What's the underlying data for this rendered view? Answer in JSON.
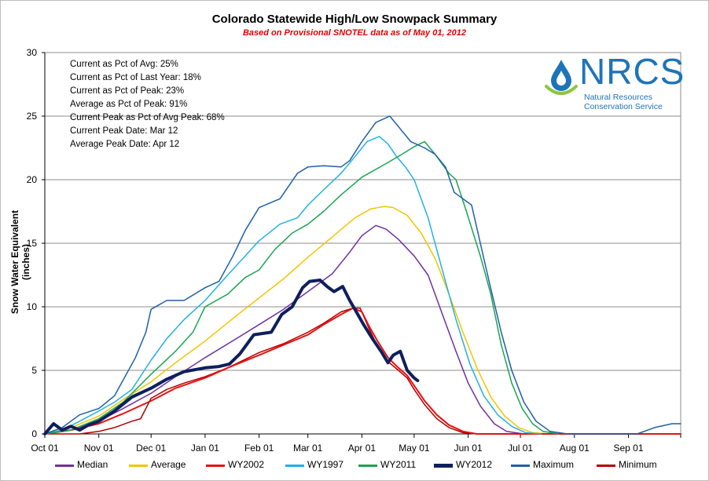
{
  "chart_data": {
    "type": "line",
    "title": "Colorado Statewide High/Low Snowpack Summary",
    "subtitle": "Based on Provisional SNOTEL data as of May 01, 2012",
    "ylabel": "Snow Water Equivalent (inches)",
    "xlabel": "",
    "ylim": [
      0,
      30
    ],
    "yticks": [
      0,
      5,
      10,
      15,
      20,
      25,
      30
    ],
    "x_axis_days": 365,
    "xtick_labels": [
      "Oct 01",
      "Nov 01",
      "Dec 01",
      "Jan 01",
      "Feb 01",
      "Mar 01",
      "Apr 01",
      "May 01",
      "Jun 01",
      "Jul 01",
      "Aug 01",
      "Sep 01"
    ],
    "xtick_days": [
      0,
      31,
      61,
      92,
      123,
      151,
      182,
      212,
      243,
      273,
      304,
      335
    ],
    "grid": true,
    "legend_position": "bottom",
    "annotations": [
      "Current as Pct of Avg: 25%",
      "Current as Pct of Last Year: 18%",
      "Current as Pct of Peak: 23%",
      "Average as Pct of Peak: 91%",
      "Current Peak as Pct of Avg Peak: 68%",
      "Current Peak Date: Mar 12",
      "Average Peak Date: Apr 12"
    ],
    "series": [
      {
        "name": "Median",
        "color": "#7030a0",
        "width": 1.5,
        "points": [
          [
            0,
            0
          ],
          [
            15,
            0.3
          ],
          [
            31,
            1.0
          ],
          [
            45,
            2.0
          ],
          [
            61,
            3.2
          ],
          [
            75,
            4.5
          ],
          [
            92,
            6.0
          ],
          [
            110,
            7.5
          ],
          [
            123,
            8.6
          ],
          [
            137,
            9.8
          ],
          [
            151,
            11.2
          ],
          [
            165,
            12.6
          ],
          [
            175,
            14.3
          ],
          [
            182,
            15.6
          ],
          [
            190,
            16.4
          ],
          [
            196,
            16.1
          ],
          [
            203,
            15.3
          ],
          [
            212,
            14.0
          ],
          [
            220,
            12.5
          ],
          [
            228,
            9.5
          ],
          [
            236,
            6.5
          ],
          [
            243,
            4.0
          ],
          [
            250,
            2.2
          ],
          [
            258,
            0.8
          ],
          [
            265,
            0.2
          ],
          [
            275,
            0
          ]
        ]
      },
      {
        "name": "Average",
        "color": "#f5c400",
        "width": 1.5,
        "points": [
          [
            0,
            0
          ],
          [
            15,
            0.5
          ],
          [
            31,
            1.4
          ],
          [
            45,
            2.7
          ],
          [
            61,
            4.1
          ],
          [
            75,
            5.6
          ],
          [
            92,
            7.3
          ],
          [
            110,
            9.3
          ],
          [
            123,
            10.7
          ],
          [
            137,
            12.2
          ],
          [
            151,
            13.9
          ],
          [
            165,
            15.5
          ],
          [
            178,
            17.0
          ],
          [
            187,
            17.7
          ],
          [
            195,
            17.9
          ],
          [
            200,
            17.8
          ],
          [
            208,
            17.2
          ],
          [
            216,
            15.8
          ],
          [
            224,
            13.8
          ],
          [
            232,
            11.0
          ],
          [
            240,
            8.0
          ],
          [
            248,
            5.2
          ],
          [
            256,
            2.9
          ],
          [
            264,
            1.4
          ],
          [
            272,
            0.5
          ],
          [
            280,
            0.1
          ],
          [
            290,
            0
          ]
        ]
      },
      {
        "name": "WY2002",
        "color": "#e81010",
        "width": 2,
        "points": [
          [
            0,
            0
          ],
          [
            15,
            0.3
          ],
          [
            31,
            0.8
          ],
          [
            45,
            1.6
          ],
          [
            61,
            2.6
          ],
          [
            75,
            3.6
          ],
          [
            92,
            4.4
          ],
          [
            105,
            5.2
          ],
          [
            123,
            6.2
          ],
          [
            137,
            7.0
          ],
          [
            151,
            7.8
          ],
          [
            160,
            8.6
          ],
          [
            170,
            9.4
          ],
          [
            177,
            9.9
          ],
          [
            182,
            9.6
          ],
          [
            186,
            8.5
          ],
          [
            191,
            7.3
          ],
          [
            197,
            6.0
          ],
          [
            203,
            5.2
          ],
          [
            208,
            4.6
          ],
          [
            212,
            3.8
          ],
          [
            218,
            2.6
          ],
          [
            225,
            1.5
          ],
          [
            232,
            0.7
          ],
          [
            240,
            0.2
          ],
          [
            248,
            0
          ],
          [
            365,
            0
          ]
        ]
      },
      {
        "name": "WY1997",
        "color": "#21b1e6",
        "width": 1.5,
        "points": [
          [
            0,
            0
          ],
          [
            10,
            0.3
          ],
          [
            20,
            1.0
          ],
          [
            31,
            1.8
          ],
          [
            40,
            2.5
          ],
          [
            50,
            3.5
          ],
          [
            61,
            5.8
          ],
          [
            70,
            7.5
          ],
          [
            80,
            9.0
          ],
          [
            92,
            10.5
          ],
          [
            105,
            12.5
          ],
          [
            115,
            14.0
          ],
          [
            123,
            15.2
          ],
          [
            135,
            16.5
          ],
          [
            145,
            17.0
          ],
          [
            151,
            18.0
          ],
          [
            160,
            19.2
          ],
          [
            170,
            20.5
          ],
          [
            178,
            21.8
          ],
          [
            185,
            23.0
          ],
          [
            192,
            23.4
          ],
          [
            197,
            22.8
          ],
          [
            202,
            21.8
          ],
          [
            207,
            21.0
          ],
          [
            212,
            20.0
          ],
          [
            220,
            17.0
          ],
          [
            228,
            13.0
          ],
          [
            236,
            9.0
          ],
          [
            244,
            5.5
          ],
          [
            252,
            3.0
          ],
          [
            260,
            1.5
          ],
          [
            268,
            0.6
          ],
          [
            276,
            0.1
          ],
          [
            285,
            0
          ]
        ]
      },
      {
        "name": "WY2011",
        "color": "#1aa552",
        "width": 1.5,
        "points": [
          [
            0,
            0
          ],
          [
            15,
            0.3
          ],
          [
            31,
            1.2
          ],
          [
            45,
            2.5
          ],
          [
            61,
            4.7
          ],
          [
            75,
            6.5
          ],
          [
            85,
            8.0
          ],
          [
            92,
            10.0
          ],
          [
            105,
            11.0
          ],
          [
            115,
            12.3
          ],
          [
            123,
            12.9
          ],
          [
            132,
            14.5
          ],
          [
            142,
            15.8
          ],
          [
            151,
            16.5
          ],
          [
            160,
            17.5
          ],
          [
            170,
            18.8
          ],
          [
            182,
            20.2
          ],
          [
            195,
            21.2
          ],
          [
            205,
            22.0
          ],
          [
            212,
            22.6
          ],
          [
            218,
            23.0
          ],
          [
            224,
            22.0
          ],
          [
            232,
            20.5
          ],
          [
            236,
            20.0
          ],
          [
            242,
            17.5
          ],
          [
            250,
            14.0
          ],
          [
            256,
            11.0
          ],
          [
            262,
            7.0
          ],
          [
            268,
            4.0
          ],
          [
            274,
            2.0
          ],
          [
            280,
            0.8
          ],
          [
            286,
            0.2
          ],
          [
            295,
            0
          ]
        ]
      },
      {
        "name": "WY2012",
        "color": "#0d1f5c",
        "width": 4,
        "points": [
          [
            0,
            0
          ],
          [
            5,
            0.8
          ],
          [
            10,
            0.3
          ],
          [
            15,
            0.6
          ],
          [
            20,
            0.3
          ],
          [
            25,
            0.7
          ],
          [
            31,
            1.0
          ],
          [
            40,
            1.8
          ],
          [
            50,
            2.9
          ],
          [
            61,
            3.6
          ],
          [
            70,
            4.3
          ],
          [
            80,
            4.9
          ],
          [
            92,
            5.2
          ],
          [
            100,
            5.3
          ],
          [
            106,
            5.5
          ],
          [
            112,
            6.3
          ],
          [
            120,
            7.8
          ],
          [
            130,
            8.0
          ],
          [
            136,
            9.4
          ],
          [
            142,
            10.0
          ],
          [
            148,
            11.5
          ],
          [
            152,
            12.0
          ],
          [
            158,
            12.1
          ],
          [
            162,
            11.6
          ],
          [
            166,
            11.2
          ],
          [
            171,
            11.6
          ],
          [
            175,
            10.5
          ],
          [
            178,
            9.8
          ],
          [
            183,
            8.6
          ],
          [
            188,
            7.5
          ],
          [
            193,
            6.5
          ],
          [
            197,
            5.6
          ],
          [
            200,
            6.2
          ],
          [
            204,
            6.5
          ],
          [
            208,
            5.0
          ],
          [
            212,
            4.4
          ],
          [
            214,
            4.2
          ]
        ]
      },
      {
        "name": "Maximum",
        "color": "#1e5fa8",
        "width": 1.5,
        "points": [
          [
            0,
            0
          ],
          [
            10,
            0.5
          ],
          [
            20,
            1.5
          ],
          [
            31,
            2.0
          ],
          [
            40,
            3.0
          ],
          [
            52,
            6.0
          ],
          [
            58,
            8.0
          ],
          [
            61,
            9.8
          ],
          [
            70,
            10.5
          ],
          [
            80,
            10.5
          ],
          [
            92,
            11.5
          ],
          [
            100,
            12.0
          ],
          [
            108,
            14.0
          ],
          [
            115,
            16.0
          ],
          [
            123,
            17.8
          ],
          [
            135,
            18.5
          ],
          [
            145,
            20.5
          ],
          [
            151,
            21.0
          ],
          [
            160,
            21.1
          ],
          [
            170,
            21.0
          ],
          [
            175,
            21.5
          ],
          [
            182,
            23.0
          ],
          [
            190,
            24.5
          ],
          [
            198,
            25.0
          ],
          [
            204,
            24.0
          ],
          [
            210,
            23.0
          ],
          [
            218,
            22.5
          ],
          [
            224,
            22.0
          ],
          [
            230,
            21.0
          ],
          [
            235,
            19.0
          ],
          [
            240,
            18.5
          ],
          [
            245,
            18.0
          ],
          [
            250,
            15.0
          ],
          [
            255,
            12.0
          ],
          [
            262,
            8.0
          ],
          [
            268,
            5.0
          ],
          [
            275,
            2.5
          ],
          [
            282,
            1.0
          ],
          [
            290,
            0.2
          ],
          [
            300,
            0
          ],
          [
            340,
            0
          ],
          [
            350,
            0.5
          ],
          [
            360,
            0.8
          ],
          [
            365,
            0.8
          ]
        ]
      },
      {
        "name": "Minimum",
        "color": "#b40000",
        "width": 1.5,
        "points": [
          [
            0,
            0
          ],
          [
            20,
            0
          ],
          [
            31,
            0.2
          ],
          [
            40,
            0.5
          ],
          [
            50,
            1.0
          ],
          [
            55,
            1.2
          ],
          [
            61,
            2.8
          ],
          [
            70,
            3.5
          ],
          [
            80,
            4.0
          ],
          [
            92,
            4.5
          ],
          [
            105,
            5.2
          ],
          [
            123,
            6.4
          ],
          [
            137,
            7.1
          ],
          [
            151,
            8.0
          ],
          [
            160,
            8.7
          ],
          [
            170,
            9.6
          ],
          [
            177,
            9.9
          ],
          [
            181,
            9.9
          ],
          [
            186,
            8.3
          ],
          [
            191,
            6.9
          ],
          [
            197,
            5.7
          ],
          [
            203,
            5.0
          ],
          [
            208,
            4.4
          ],
          [
            212,
            3.5
          ],
          [
            218,
            2.3
          ],
          [
            225,
            1.2
          ],
          [
            232,
            0.5
          ],
          [
            240,
            0.1
          ],
          [
            248,
            0
          ],
          [
            365,
            0
          ]
        ]
      }
    ]
  },
  "ytick_labels": [
    "0",
    "5",
    "10",
    "15",
    "20",
    "25",
    "30"
  ],
  "logo": {
    "word": "NRCS",
    "line1": "Natural Resources",
    "line2": "Conservation Service",
    "blue": "#1e74b8",
    "green": "#8dc63f"
  }
}
